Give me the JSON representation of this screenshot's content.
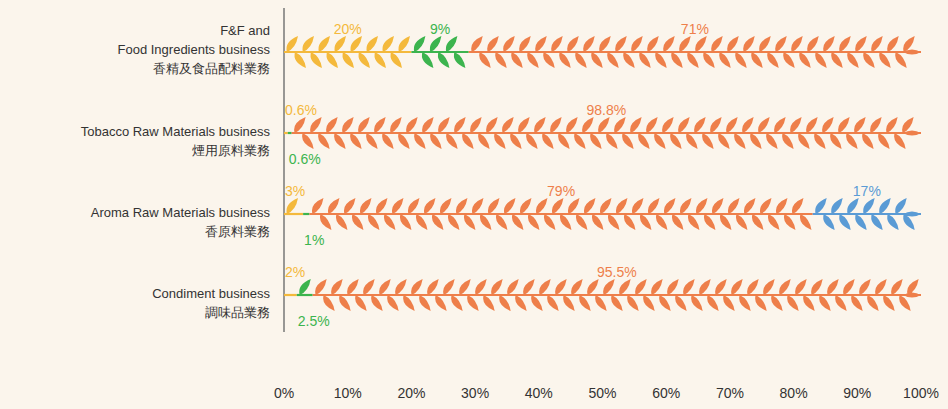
{
  "chart_data": {
    "type": "bar",
    "orientation": "horizontal",
    "stacked": true,
    "data_labels": true,
    "grid": false,
    "categories": [
      "F&F and\nFood Ingredients business\n香精及食品配料業務",
      "Tobacco Raw Materials business\n煙用原料業務",
      "Aroma Raw Materials business\n香原料業務",
      "Condiment business\n調味品業務"
    ],
    "series": [
      {
        "color": "#f4b93c",
        "values": [
          20,
          0.6,
          3,
          2
        ],
        "value_labels": [
          "20%",
          "0.6%",
          "3%",
          "2%"
        ]
      },
      {
        "color": "#3cb44e",
        "values": [
          9,
          0.6,
          1,
          2.5
        ],
        "value_labels": [
          "9%",
          "0.6%",
          "1%",
          "2.5%"
        ]
      },
      {
        "color": "#ee7f4a",
        "values": [
          71,
          98.8,
          79,
          95.5
        ],
        "value_labels": [
          "71%",
          "98.8%",
          "79%",
          "95.5%"
        ]
      },
      {
        "color": "#5a9bd5",
        "values": [
          null,
          null,
          17,
          null
        ],
        "value_labels": [
          null,
          null,
          "17%",
          null
        ]
      }
    ],
    "xlim": [
      0,
      100
    ],
    "xticks": [
      {
        "value": 0,
        "label": "0%"
      },
      {
        "value": 10,
        "label": "10%"
      },
      {
        "value": 20,
        "label": "20%"
      },
      {
        "value": 30,
        "label": "30%"
      },
      {
        "value": 40,
        "label": "40%"
      },
      {
        "value": 50,
        "label": "50%"
      },
      {
        "value": 60,
        "label": "60%"
      },
      {
        "value": 70,
        "label": "70%"
      },
      {
        "value": 80,
        "label": "80%"
      },
      {
        "value": 90,
        "label": "90%"
      },
      {
        "value": 100,
        "label": "100%"
      }
    ]
  }
}
